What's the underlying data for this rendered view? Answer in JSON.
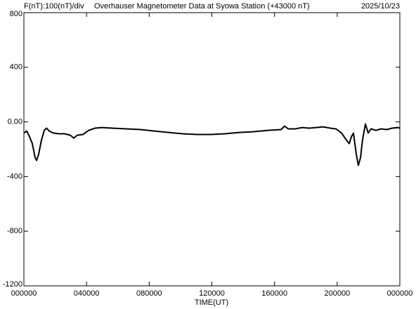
{
  "chart_data": {
    "type": "line",
    "title": "Overhauser Magnetometer Data at Syowa Station (+43000 nT)",
    "scale_label": "F(nT):100(nT)/div",
    "date": "2025/10/23",
    "xlabel": "TIME(UT)",
    "xlim": [
      0,
      24
    ],
    "xticks": [
      {
        "value": 0,
        "label": "000000"
      },
      {
        "value": 4,
        "label": "040000"
      },
      {
        "value": 8,
        "label": "080000"
      },
      {
        "value": 12,
        "label": "120000"
      },
      {
        "value": 16,
        "label": "160000"
      },
      {
        "value": 20,
        "label": "200000"
      },
      {
        "value": 24,
        "label": "000000"
      }
    ],
    "ylim": [
      -1200,
      800
    ],
    "yticks": [
      {
        "value": -1200,
        "label": "-1200"
      },
      -800,
      -400,
      {
        "value": 0,
        "label": "0.00"
      },
      400,
      800
    ],
    "grid": false,
    "series": [
      {
        "color": "#000000",
        "x": [
          0,
          0.18,
          0.36,
          0.54,
          0.72,
          0.81,
          0.94,
          1.12,
          1.3,
          1.44,
          1.62,
          1.88,
          2.24,
          2.6,
          2.96,
          3.19,
          3.41,
          3.77,
          4.13,
          4.53,
          4.98,
          5.65,
          6.55,
          7.45,
          8.34,
          9.24,
          10.14,
          11.04,
          11.93,
          12.83,
          13.73,
          14.62,
          15.52,
          16.42,
          16.64,
          16.87,
          17.32,
          17.77,
          18.21,
          18.66,
          19.11,
          19.56,
          19.92,
          20.28,
          20.59,
          20.77,
          20.91,
          21.04,
          21.22,
          21.35,
          21.49,
          21.62,
          21.8,
          21.98,
          22.16,
          22.48,
          22.79,
          23.15,
          23.51,
          23.87,
          24
        ],
        "values": [
          -82,
          -67,
          -108,
          -159,
          -262,
          -282,
          -236,
          -133,
          -62,
          -46,
          -67,
          -82,
          -87,
          -87,
          -97,
          -118,
          -97,
          -92,
          -62,
          -46,
          -41,
          -46,
          -51,
          -56,
          -67,
          -77,
          -87,
          -92,
          -92,
          -87,
          -77,
          -72,
          -62,
          -56,
          -31,
          -51,
          -51,
          -41,
          -46,
          -41,
          -36,
          -46,
          -51,
          -82,
          -133,
          -159,
          -108,
          -82,
          -236,
          -318,
          -262,
          -133,
          -15,
          -82,
          -51,
          -62,
          -51,
          -56,
          -46,
          -41,
          -46
        ]
      }
    ]
  }
}
